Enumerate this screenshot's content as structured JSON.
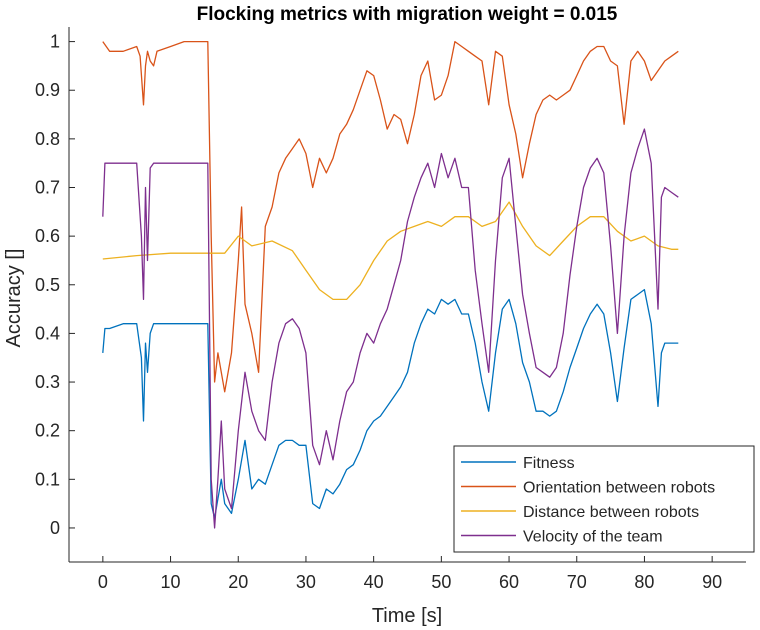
{
  "chart_data": {
    "type": "line",
    "title": "Flocking metrics with migration weight = 0.015",
    "xlabel": "Time [s]",
    "ylabel": "Accuracy []",
    "xlim": [
      -5,
      95
    ],
    "ylim": [
      -0.07,
      1.03
    ],
    "xticks": [
      0,
      10,
      20,
      30,
      40,
      50,
      60,
      70,
      80,
      90
    ],
    "yticks": [
      0,
      0.1,
      0.2,
      0.3,
      0.4,
      0.5,
      0.6,
      0.7,
      0.8,
      0.9,
      1
    ],
    "ytick_labels": [
      "0",
      "0.1",
      "0.2",
      "0.3",
      "0.4",
      "0.5",
      "0.6",
      "0.7",
      "0.8",
      "0.9",
      "1"
    ],
    "grid": false,
    "legend_position": "bottom-right",
    "series": [
      {
        "name": "Fitness",
        "color": "#0072BD",
        "x": [
          0,
          0.3,
          1,
          3,
          5,
          5.7,
          6,
          6.3,
          6.6,
          7,
          7.5,
          8,
          10,
          12,
          15.5,
          16,
          16.5,
          17,
          17.5,
          18,
          19,
          20,
          21,
          22,
          23,
          24,
          25,
          26,
          27,
          28,
          29,
          30,
          31,
          32,
          33,
          34,
          35,
          36,
          37,
          38,
          39,
          40,
          41,
          42,
          43,
          44,
          45,
          46,
          47,
          48,
          49,
          50,
          51,
          52,
          53,
          54,
          55,
          56,
          57,
          58,
          59,
          60,
          61,
          62,
          63,
          64,
          65,
          66,
          67,
          68,
          69,
          70,
          71,
          72,
          73,
          74,
          75,
          76,
          77,
          78,
          79,
          80,
          81,
          82,
          82.5,
          83,
          84,
          85
        ],
        "y": [
          0.36,
          0.41,
          0.41,
          0.42,
          0.42,
          0.35,
          0.22,
          0.38,
          0.32,
          0.4,
          0.42,
          0.42,
          0.42,
          0.42,
          0.42,
          0.05,
          0.02,
          0.06,
          0.1,
          0.05,
          0.03,
          0.1,
          0.18,
          0.08,
          0.1,
          0.09,
          0.13,
          0.17,
          0.18,
          0.18,
          0.17,
          0.17,
          0.05,
          0.04,
          0.08,
          0.07,
          0.09,
          0.12,
          0.13,
          0.16,
          0.2,
          0.22,
          0.23,
          0.25,
          0.27,
          0.29,
          0.32,
          0.38,
          0.42,
          0.45,
          0.44,
          0.47,
          0.46,
          0.47,
          0.44,
          0.44,
          0.38,
          0.3,
          0.24,
          0.36,
          0.45,
          0.47,
          0.42,
          0.34,
          0.3,
          0.24,
          0.24,
          0.23,
          0.24,
          0.28,
          0.33,
          0.37,
          0.41,
          0.44,
          0.46,
          0.44,
          0.36,
          0.26,
          0.37,
          0.47,
          0.48,
          0.49,
          0.42,
          0.25,
          0.36,
          0.38,
          0.38,
          0.38
        ]
      },
      {
        "name": "Orientation between robots",
        "color": "#D95319",
        "x": [
          0,
          1,
          3,
          5,
          5.5,
          6,
          6.3,
          6.6,
          7,
          7.5,
          8,
          10,
          12,
          15.5,
          16,
          16.5,
          17,
          18,
          19,
          20,
          20.5,
          21,
          22,
          23,
          24,
          25,
          26,
          27,
          28,
          29,
          30,
          31,
          32,
          33,
          34,
          35,
          36,
          37,
          38,
          39,
          40,
          41,
          42,
          43,
          44,
          45,
          46,
          47,
          48,
          49,
          50,
          51,
          52,
          53,
          54,
          55,
          56,
          57,
          58,
          59,
          60,
          61,
          62,
          63,
          64,
          65,
          66,
          67,
          68,
          69,
          70,
          71,
          72,
          73,
          74,
          75,
          76,
          77,
          78,
          79,
          80,
          81,
          82,
          83,
          84,
          85
        ],
        "y": [
          1.0,
          0.98,
          0.98,
          0.99,
          0.97,
          0.87,
          0.95,
          0.98,
          0.96,
          0.95,
          0.98,
          0.99,
          1.0,
          1.0,
          0.6,
          0.3,
          0.36,
          0.28,
          0.36,
          0.55,
          0.66,
          0.46,
          0.4,
          0.32,
          0.62,
          0.66,
          0.73,
          0.76,
          0.78,
          0.8,
          0.77,
          0.7,
          0.76,
          0.73,
          0.76,
          0.81,
          0.83,
          0.86,
          0.9,
          0.94,
          0.93,
          0.88,
          0.82,
          0.85,
          0.84,
          0.79,
          0.85,
          0.93,
          0.96,
          0.88,
          0.89,
          0.93,
          1.0,
          0.99,
          0.98,
          0.97,
          0.96,
          0.87,
          0.98,
          0.97,
          0.87,
          0.81,
          0.72,
          0.79,
          0.85,
          0.88,
          0.89,
          0.88,
          0.89,
          0.9,
          0.93,
          0.96,
          0.98,
          0.99,
          0.99,
          0.96,
          0.95,
          0.83,
          0.96,
          0.98,
          0.96,
          0.92,
          0.94,
          0.96,
          0.97,
          0.98
        ]
      },
      {
        "name": "Distance between robots",
        "color": "#EDB120",
        "x": [
          0,
          5,
          10,
          15,
          18,
          20,
          22,
          25,
          28,
          30,
          32,
          34,
          36,
          38,
          40,
          42,
          44,
          46,
          48,
          50,
          52,
          54,
          56,
          58,
          60,
          62,
          64,
          66,
          68,
          70,
          72,
          74,
          76,
          78,
          80,
          82,
          84,
          85
        ],
        "y": [
          0.553,
          0.56,
          0.565,
          0.565,
          0.565,
          0.6,
          0.58,
          0.59,
          0.57,
          0.53,
          0.49,
          0.47,
          0.47,
          0.5,
          0.55,
          0.59,
          0.61,
          0.62,
          0.63,
          0.62,
          0.64,
          0.64,
          0.62,
          0.63,
          0.67,
          0.62,
          0.58,
          0.56,
          0.59,
          0.62,
          0.64,
          0.64,
          0.61,
          0.59,
          0.6,
          0.58,
          0.573,
          0.573
        ]
      },
      {
        "name": "Velocity of the team",
        "color": "#7E2F8E",
        "x": [
          0,
          0.3,
          1,
          3,
          5,
          5.7,
          6,
          6.3,
          6.6,
          7,
          7.5,
          8,
          10,
          12,
          15.5,
          16,
          16.5,
          17,
          17.5,
          18,
          19,
          20,
          21,
          22,
          23,
          24,
          25,
          26,
          27,
          28,
          29,
          30,
          31,
          32,
          33,
          34,
          35,
          36,
          37,
          38,
          39,
          40,
          41,
          42,
          43,
          44,
          45,
          46,
          47,
          48,
          49,
          50,
          51,
          52,
          53,
          54,
          55,
          56,
          57,
          58,
          59,
          60,
          61,
          62,
          63,
          64,
          65,
          66,
          67,
          68,
          69,
          70,
          71,
          72,
          73,
          74,
          75,
          76,
          77,
          78,
          79,
          80,
          81,
          82,
          82.5,
          83,
          84,
          85
        ],
        "y": [
          0.64,
          0.75,
          0.75,
          0.75,
          0.75,
          0.6,
          0.47,
          0.7,
          0.55,
          0.74,
          0.75,
          0.75,
          0.75,
          0.75,
          0.75,
          0.1,
          0.0,
          0.1,
          0.22,
          0.08,
          0.04,
          0.2,
          0.32,
          0.24,
          0.2,
          0.18,
          0.3,
          0.38,
          0.42,
          0.43,
          0.41,
          0.36,
          0.17,
          0.13,
          0.2,
          0.14,
          0.22,
          0.28,
          0.3,
          0.36,
          0.4,
          0.38,
          0.42,
          0.45,
          0.5,
          0.55,
          0.63,
          0.68,
          0.72,
          0.75,
          0.7,
          0.77,
          0.72,
          0.76,
          0.7,
          0.7,
          0.53,
          0.42,
          0.32,
          0.55,
          0.72,
          0.76,
          0.62,
          0.48,
          0.4,
          0.33,
          0.32,
          0.31,
          0.33,
          0.4,
          0.52,
          0.62,
          0.7,
          0.74,
          0.76,
          0.73,
          0.58,
          0.4,
          0.6,
          0.73,
          0.78,
          0.82,
          0.75,
          0.45,
          0.68,
          0.7,
          0.69,
          0.68
        ]
      }
    ]
  }
}
